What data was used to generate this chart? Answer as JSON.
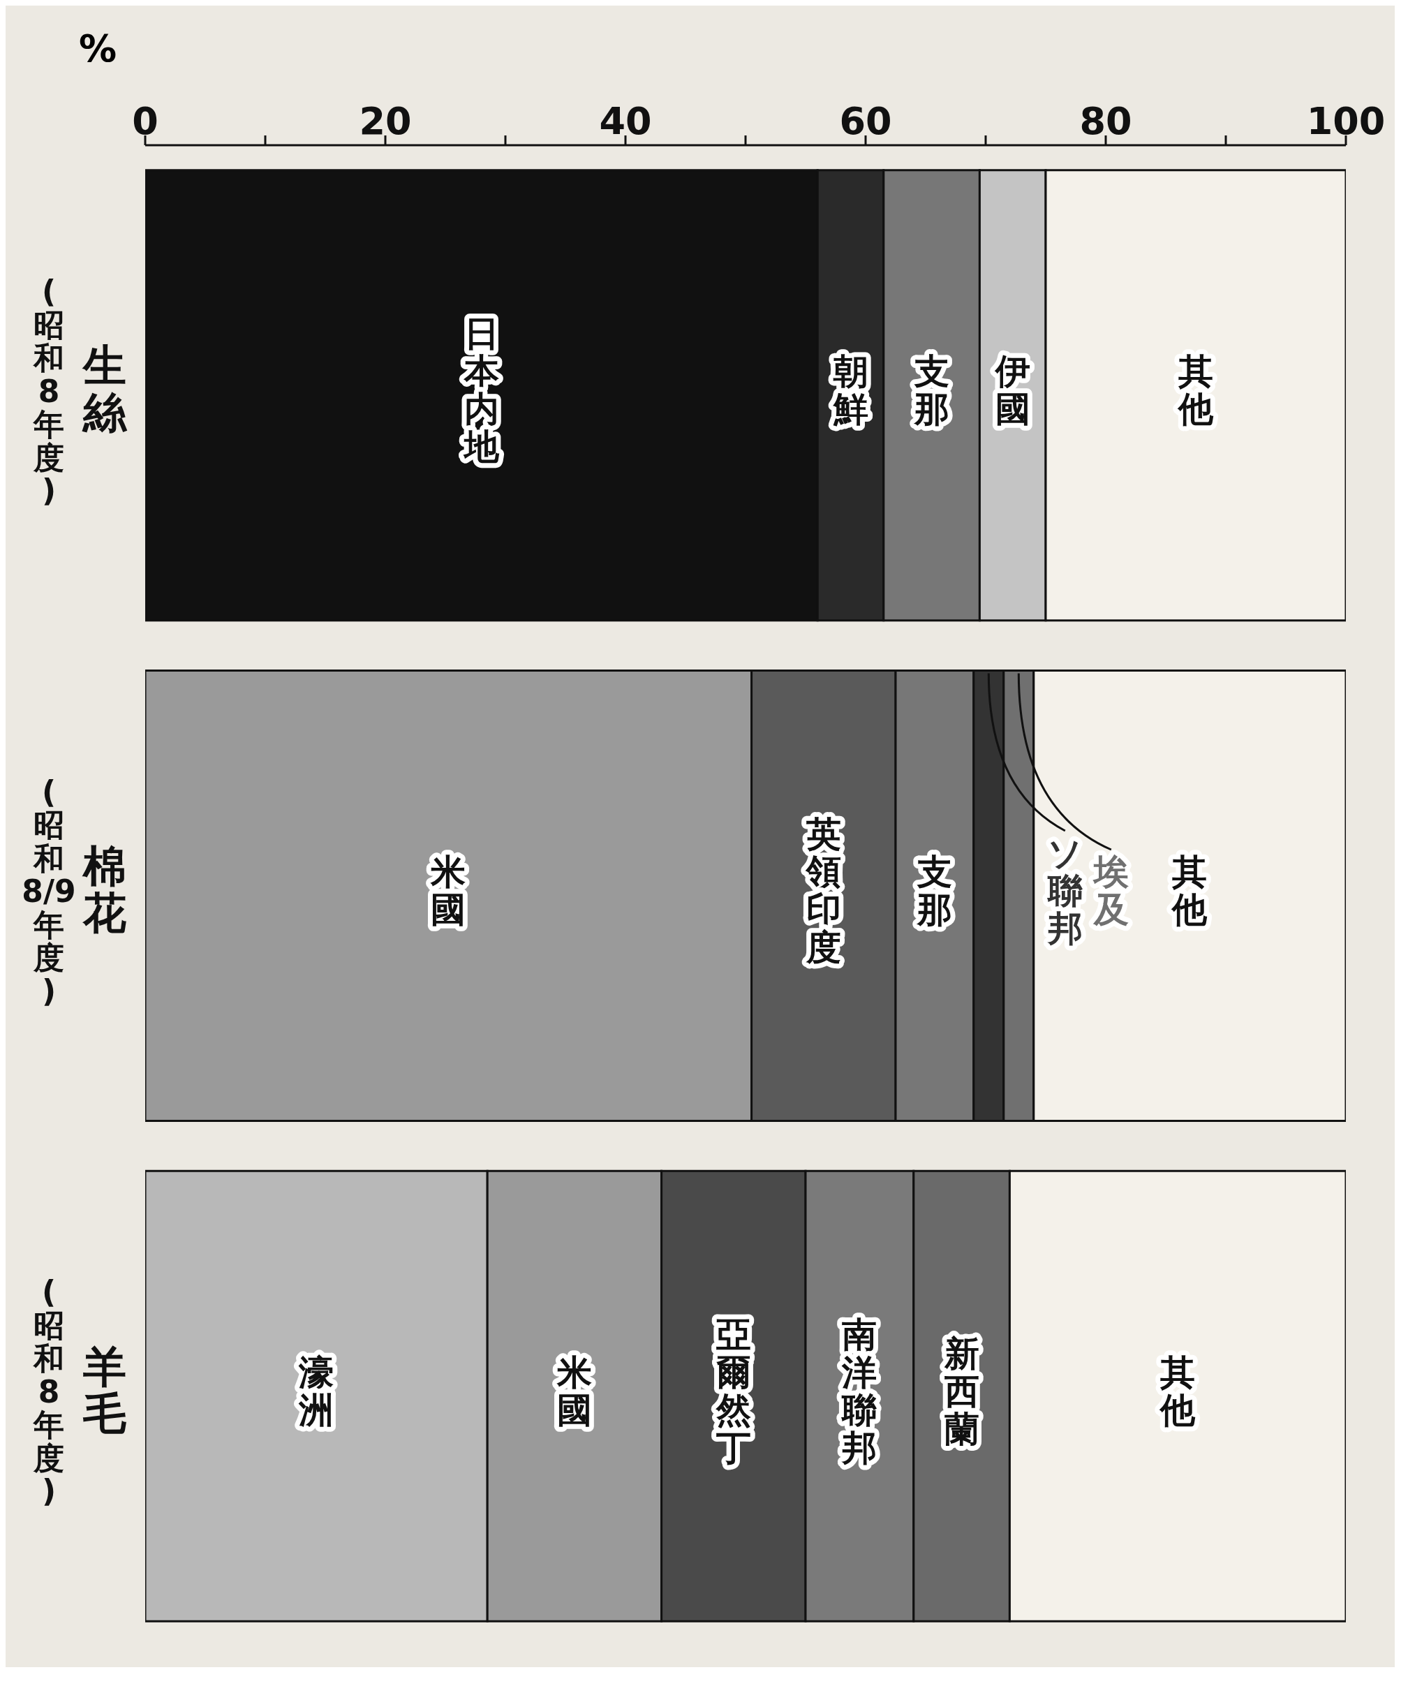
{
  "chart_data": {
    "type": "bar",
    "orientation": "horizontal",
    "stacked": true,
    "xlabel": "%",
    "categories": [
      "生絲 (昭和8年度)",
      "棉花 (昭和8/9年度)",
      "羊毛 (昭和8年度)"
    ],
    "xlim": [
      0,
      100
    ],
    "xticks": [
      0,
      {
        "value": 10,
        "label": null
      },
      20,
      {
        "value": 30,
        "label": null
      },
      40,
      {
        "value": 50,
        "label": null
      },
      60,
      {
        "value": 70,
        "label": null
      },
      80,
      {
        "value": 90,
        "label": null
      },
      100
    ],
    "series": [
      {
        "name": "日本内地",
        "color": "#111111",
        "values": [
          56,
          null,
          null
        ]
      },
      {
        "name": "朝鮮",
        "color": "#2a2a2a",
        "values": [
          5.5,
          null,
          null
        ]
      },
      {
        "name": "濠洲",
        "color": "#b8b8b8",
        "values": [
          null,
          null,
          28.5
        ]
      },
      {
        "name": "米國",
        "color": "#9a9a9a",
        "values": [
          null,
          50.5,
          14.5
        ]
      },
      {
        "name": "英領印度",
        "color": "#5a5a5a",
        "values": [
          null,
          12,
          null
        ]
      },
      {
        "name": "亞爾然丁",
        "color": "#4a4a4a",
        "values": [
          null,
          null,
          12
        ]
      },
      {
        "name": "南洋聯邦",
        "color": "#7a7a7a",
        "values": [
          null,
          null,
          9
        ]
      },
      {
        "name": "新西蘭",
        "color": "#6a6a6a",
        "values": [
          null,
          null,
          8
        ]
      },
      {
        "name": "支那",
        "color": "#777777",
        "values": [
          8,
          6.5,
          null
        ]
      },
      {
        "name": "伊國",
        "color": "#c4c4c4",
        "values": [
          5.5,
          null,
          null
        ]
      },
      {
        "name": "ソ聯邦",
        "color": "#333333",
        "values": [
          null,
          2.5,
          null
        ]
      },
      {
        "name": "埃及",
        "color": "#707070",
        "values": [
          null,
          2.5,
          null
        ]
      },
      {
        "name": "其他",
        "color": "#f4f1ea",
        "values": [
          25,
          26,
          28
        ]
      }
    ],
    "legend": false,
    "grid": false
  }
}
